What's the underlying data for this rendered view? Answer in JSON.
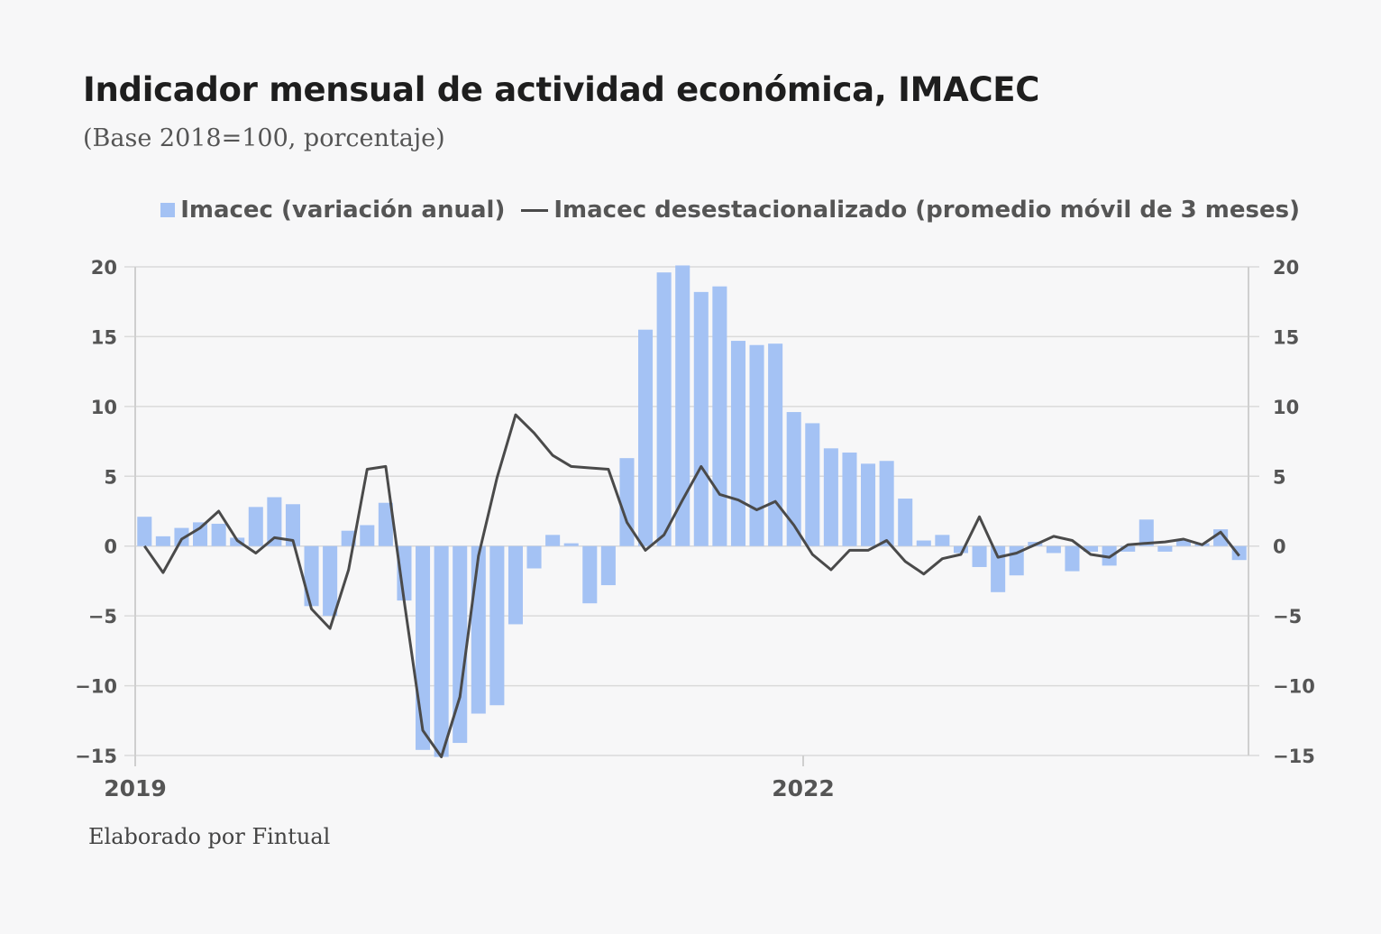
{
  "chart_data": {
    "type": "bar",
    "title": "Indicador mensual de actividad económica, IMACEC",
    "subtitle": "(Base 2018=100, porcentaje)",
    "footer": "Elaborado por Fintual",
    "ylim": [
      -15,
      20
    ],
    "y_ticks": [
      20,
      15,
      10,
      5,
      0,
      -5,
      -10,
      -15
    ],
    "x_ticks": [
      {
        "label": "2019",
        "index": 0
      },
      {
        "label": "2022",
        "index": 36
      }
    ],
    "grid": true,
    "legend_position": "top",
    "colors": {
      "bar": "#a4c2f4",
      "line": "#4a4a4a"
    },
    "series": [
      {
        "name": "Imacec (variación anual)",
        "type": "bar",
        "values": [
          2.1,
          0.7,
          1.3,
          1.7,
          1.6,
          0.6,
          2.8,
          3.5,
          3.0,
          -4.3,
          -5.0,
          1.1,
          1.5,
          3.1,
          -3.9,
          -14.6,
          -15.1,
          -14.1,
          -12.0,
          -11.4,
          -5.6,
          -1.6,
          0.8,
          0.2,
          -4.1,
          -2.8,
          6.3,
          15.5,
          19.6,
          20.1,
          18.2,
          18.6,
          14.7,
          14.4,
          14.5,
          9.6,
          8.8,
          7.0,
          6.7,
          5.9,
          6.1,
          3.4,
          0.4,
          0.8,
          -0.5,
          -1.5,
          -3.3,
          -2.1,
          0.3,
          -0.5,
          -1.8,
          -0.4,
          -1.4,
          -0.4,
          1.9,
          -0.4,
          0.4,
          0.2,
          1.2,
          -1.0
        ],
        "color": "#a4c2f4"
      },
      {
        "name": "Imacec desestacionalizado (promedio móvil de 3 meses)",
        "type": "line",
        "values": [
          0.0,
          -1.9,
          0.5,
          1.3,
          2.5,
          0.4,
          -0.5,
          0.6,
          0.4,
          -4.5,
          -5.9,
          -1.7,
          5.5,
          5.7,
          -4.0,
          -13.2,
          -15.1,
          -10.8,
          -0.7,
          4.9,
          9.4,
          8.1,
          6.5,
          5.7,
          5.6,
          5.5,
          1.7,
          -0.3,
          0.8,
          3.3,
          5.7,
          3.7,
          3.3,
          2.6,
          3.2,
          1.5,
          -0.6,
          -1.7,
          -0.3,
          -0.3,
          0.4,
          -1.1,
          -2.0,
          -0.9,
          -0.6,
          2.1,
          -0.8,
          -0.5,
          0.1,
          0.7,
          0.4,
          -0.6,
          -0.8,
          0.1,
          0.2,
          0.3,
          0.5,
          0.1,
          1.0,
          -0.7
        ],
        "color": "#4a4a4a"
      }
    ]
  }
}
